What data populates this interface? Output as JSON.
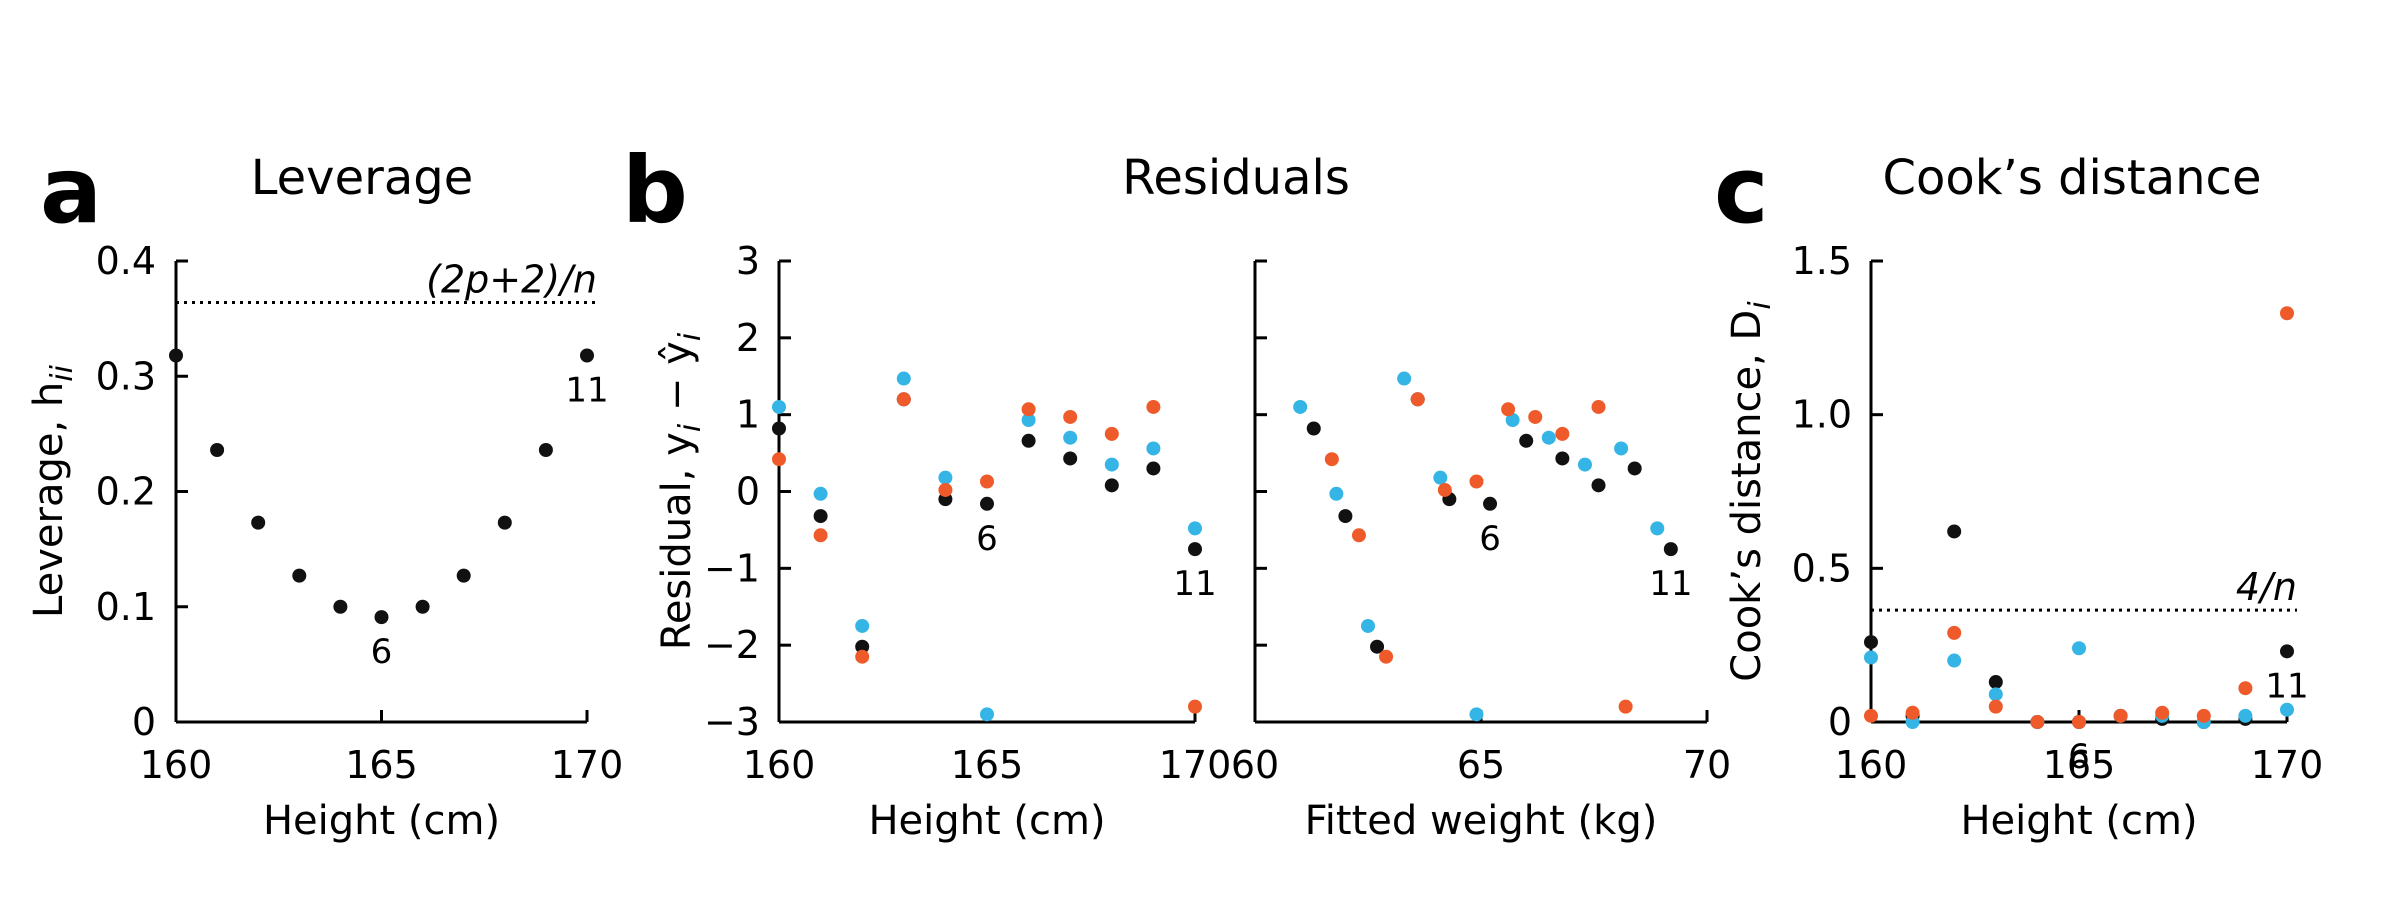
{
  "colors": {
    "black": "#111111",
    "blue": "#35b5e5",
    "orange": "#ef5a2a"
  },
  "panels": {
    "a": {
      "letter": "a",
      "title": "Leverage"
    },
    "b": {
      "letter": "b",
      "title": "Residuals"
    },
    "c": {
      "letter": "c",
      "title": "Cook’s distance"
    }
  },
  "chart_data": [
    {
      "id": "leverage",
      "type": "scatter",
      "xlabel": "Height (cm)",
      "ylabel": "Leverage, h",
      "ylabel_sub": "ii",
      "xlim": [
        160,
        170
      ],
      "ylim": [
        0,
        0.4
      ],
      "xticks": [
        "160",
        "165",
        "170"
      ],
      "yticks": [
        "0",
        "0.1",
        "0.2",
        "0.3",
        "0.4"
      ],
      "reference_line": {
        "y": 0.364,
        "label": "(2p+2)/n"
      },
      "series": [
        {
          "color": "black",
          "x": [
            160,
            161,
            162,
            163,
            164,
            165,
            166,
            167,
            168,
            169,
            170
          ],
          "y": [
            0.318,
            0.236,
            0.173,
            0.127,
            0.1,
            0.091,
            0.1,
            0.127,
            0.173,
            0.236,
            0.318
          ]
        }
      ],
      "annotations": [
        {
          "text": "6",
          "x": 165,
          "y": 0.091
        },
        {
          "text": "11",
          "x": 170,
          "y": 0.318
        }
      ]
    },
    {
      "id": "residual-height",
      "type": "scatter",
      "xlabel": "Height (cm)",
      "ylabel": "Residual, y",
      "ylabel_rest": " − ŷ",
      "ylabel_sub": "i",
      "xlim": [
        160,
        170
      ],
      "ylim": [
        -3,
        3
      ],
      "xticks": [
        "160",
        "165",
        "170"
      ],
      "yticks": [
        "−3",
        "−2",
        "−1",
        "0",
        "1",
        "2",
        "3"
      ],
      "series": [
        {
          "color": "black",
          "x": [
            160,
            161,
            162,
            163,
            164,
            165,
            166,
            167,
            168,
            169,
            170
          ],
          "y": [
            0.82,
            -0.32,
            -2.02,
            1.2,
            -0.1,
            -0.16,
            0.66,
            0.43,
            0.08,
            0.3,
            -0.75
          ]
        },
        {
          "color": "blue",
          "x": [
            160,
            161,
            162,
            163,
            164,
            165,
            166,
            167,
            168,
            169,
            170
          ],
          "y": [
            1.1,
            -0.03,
            -1.75,
            1.47,
            0.18,
            -2.9,
            0.93,
            0.7,
            0.35,
            0.56,
            -0.48
          ]
        },
        {
          "color": "orange",
          "x": [
            160,
            161,
            162,
            163,
            164,
            165,
            166,
            167,
            168,
            169,
            170
          ],
          "y": [
            0.42,
            -0.57,
            -2.15,
            1.2,
            0.02,
            0.13,
            1.07,
            0.97,
            0.75,
            1.1,
            -2.8
          ]
        }
      ],
      "annotations": [
        {
          "text": "6",
          "x": 165,
          "y": -0.16
        },
        {
          "text": "11",
          "x": 170,
          "y": -0.75
        }
      ]
    },
    {
      "id": "residual-fitted",
      "type": "scatter",
      "xlabel": "Fitted weight (kg)",
      "xlim": [
        60,
        70
      ],
      "ylim": [
        -3,
        3
      ],
      "xticks": [
        "60",
        "65",
        "70"
      ],
      "series": [
        {
          "color": "black",
          "x": [
            61.3,
            62.0,
            62.7,
            63.6,
            64.3,
            65.2,
            66.0,
            66.8,
            67.6,
            68.4,
            69.2
          ],
          "y": [
            0.82,
            -0.32,
            -2.02,
            1.2,
            -0.1,
            -0.16,
            0.66,
            0.43,
            0.08,
            0.3,
            -0.75
          ]
        },
        {
          "color": "blue",
          "x": [
            61.0,
            61.8,
            62.5,
            63.3,
            64.1,
            64.9,
            65.7,
            66.5,
            67.3,
            68.1,
            68.9
          ],
          "y": [
            1.1,
            -0.03,
            -1.75,
            1.47,
            0.18,
            -2.9,
            0.93,
            0.7,
            0.35,
            0.56,
            -0.48
          ]
        },
        {
          "color": "orange",
          "x": [
            61.7,
            62.3,
            62.9,
            63.6,
            64.2,
            64.9,
            65.6,
            66.2,
            66.8,
            67.6,
            68.2
          ],
          "y": [
            0.42,
            -0.57,
            -2.15,
            1.2,
            0.02,
            0.13,
            1.07,
            0.97,
            0.75,
            1.1,
            -2.8
          ]
        }
      ],
      "annotations": [
        {
          "text": "6",
          "x": 65.2,
          "y": -0.16
        },
        {
          "text": "11",
          "x": 69.2,
          "y": -0.75
        }
      ]
    },
    {
      "id": "cooks-distance",
      "type": "scatter",
      "xlabel": "Height (cm)",
      "ylabel": "Cook’s distance, D",
      "ylabel_sub": "i",
      "xlim": [
        160,
        170
      ],
      "ylim": [
        0,
        1.5
      ],
      "xticks": [
        "160",
        "165",
        "170"
      ],
      "yticks": [
        "0",
        "0.5",
        "1.0",
        "1.5"
      ],
      "reference_line": {
        "y": 0.364,
        "label": "4/n"
      },
      "series": [
        {
          "color": "black",
          "x": [
            160,
            161,
            162,
            163,
            164,
            165,
            166,
            167,
            168,
            169,
            170
          ],
          "y": [
            0.26,
            0.02,
            0.62,
            0.13,
            0.0,
            0.0,
            0.02,
            0.01,
            0.0,
            0.01,
            0.23
          ]
        },
        {
          "color": "blue",
          "x": [
            160,
            161,
            162,
            163,
            164,
            165,
            166,
            167,
            168,
            169,
            170
          ],
          "y": [
            0.21,
            0.0,
            0.2,
            0.09,
            0.0,
            0.24,
            0.02,
            0.02,
            0.0,
            0.02,
            0.04
          ]
        },
        {
          "color": "orange",
          "x": [
            160,
            161,
            162,
            163,
            164,
            165,
            166,
            167,
            168,
            169,
            170
          ],
          "y": [
            0.02,
            0.03,
            0.29,
            0.05,
            0.0,
            0.0,
            0.02,
            0.03,
            0.02,
            0.11,
            1.33
          ]
        }
      ],
      "annotations": [
        {
          "text": "6",
          "x": 165,
          "y": 0.0
        },
        {
          "text": "11",
          "x": 170,
          "y": 0.23
        }
      ]
    }
  ]
}
